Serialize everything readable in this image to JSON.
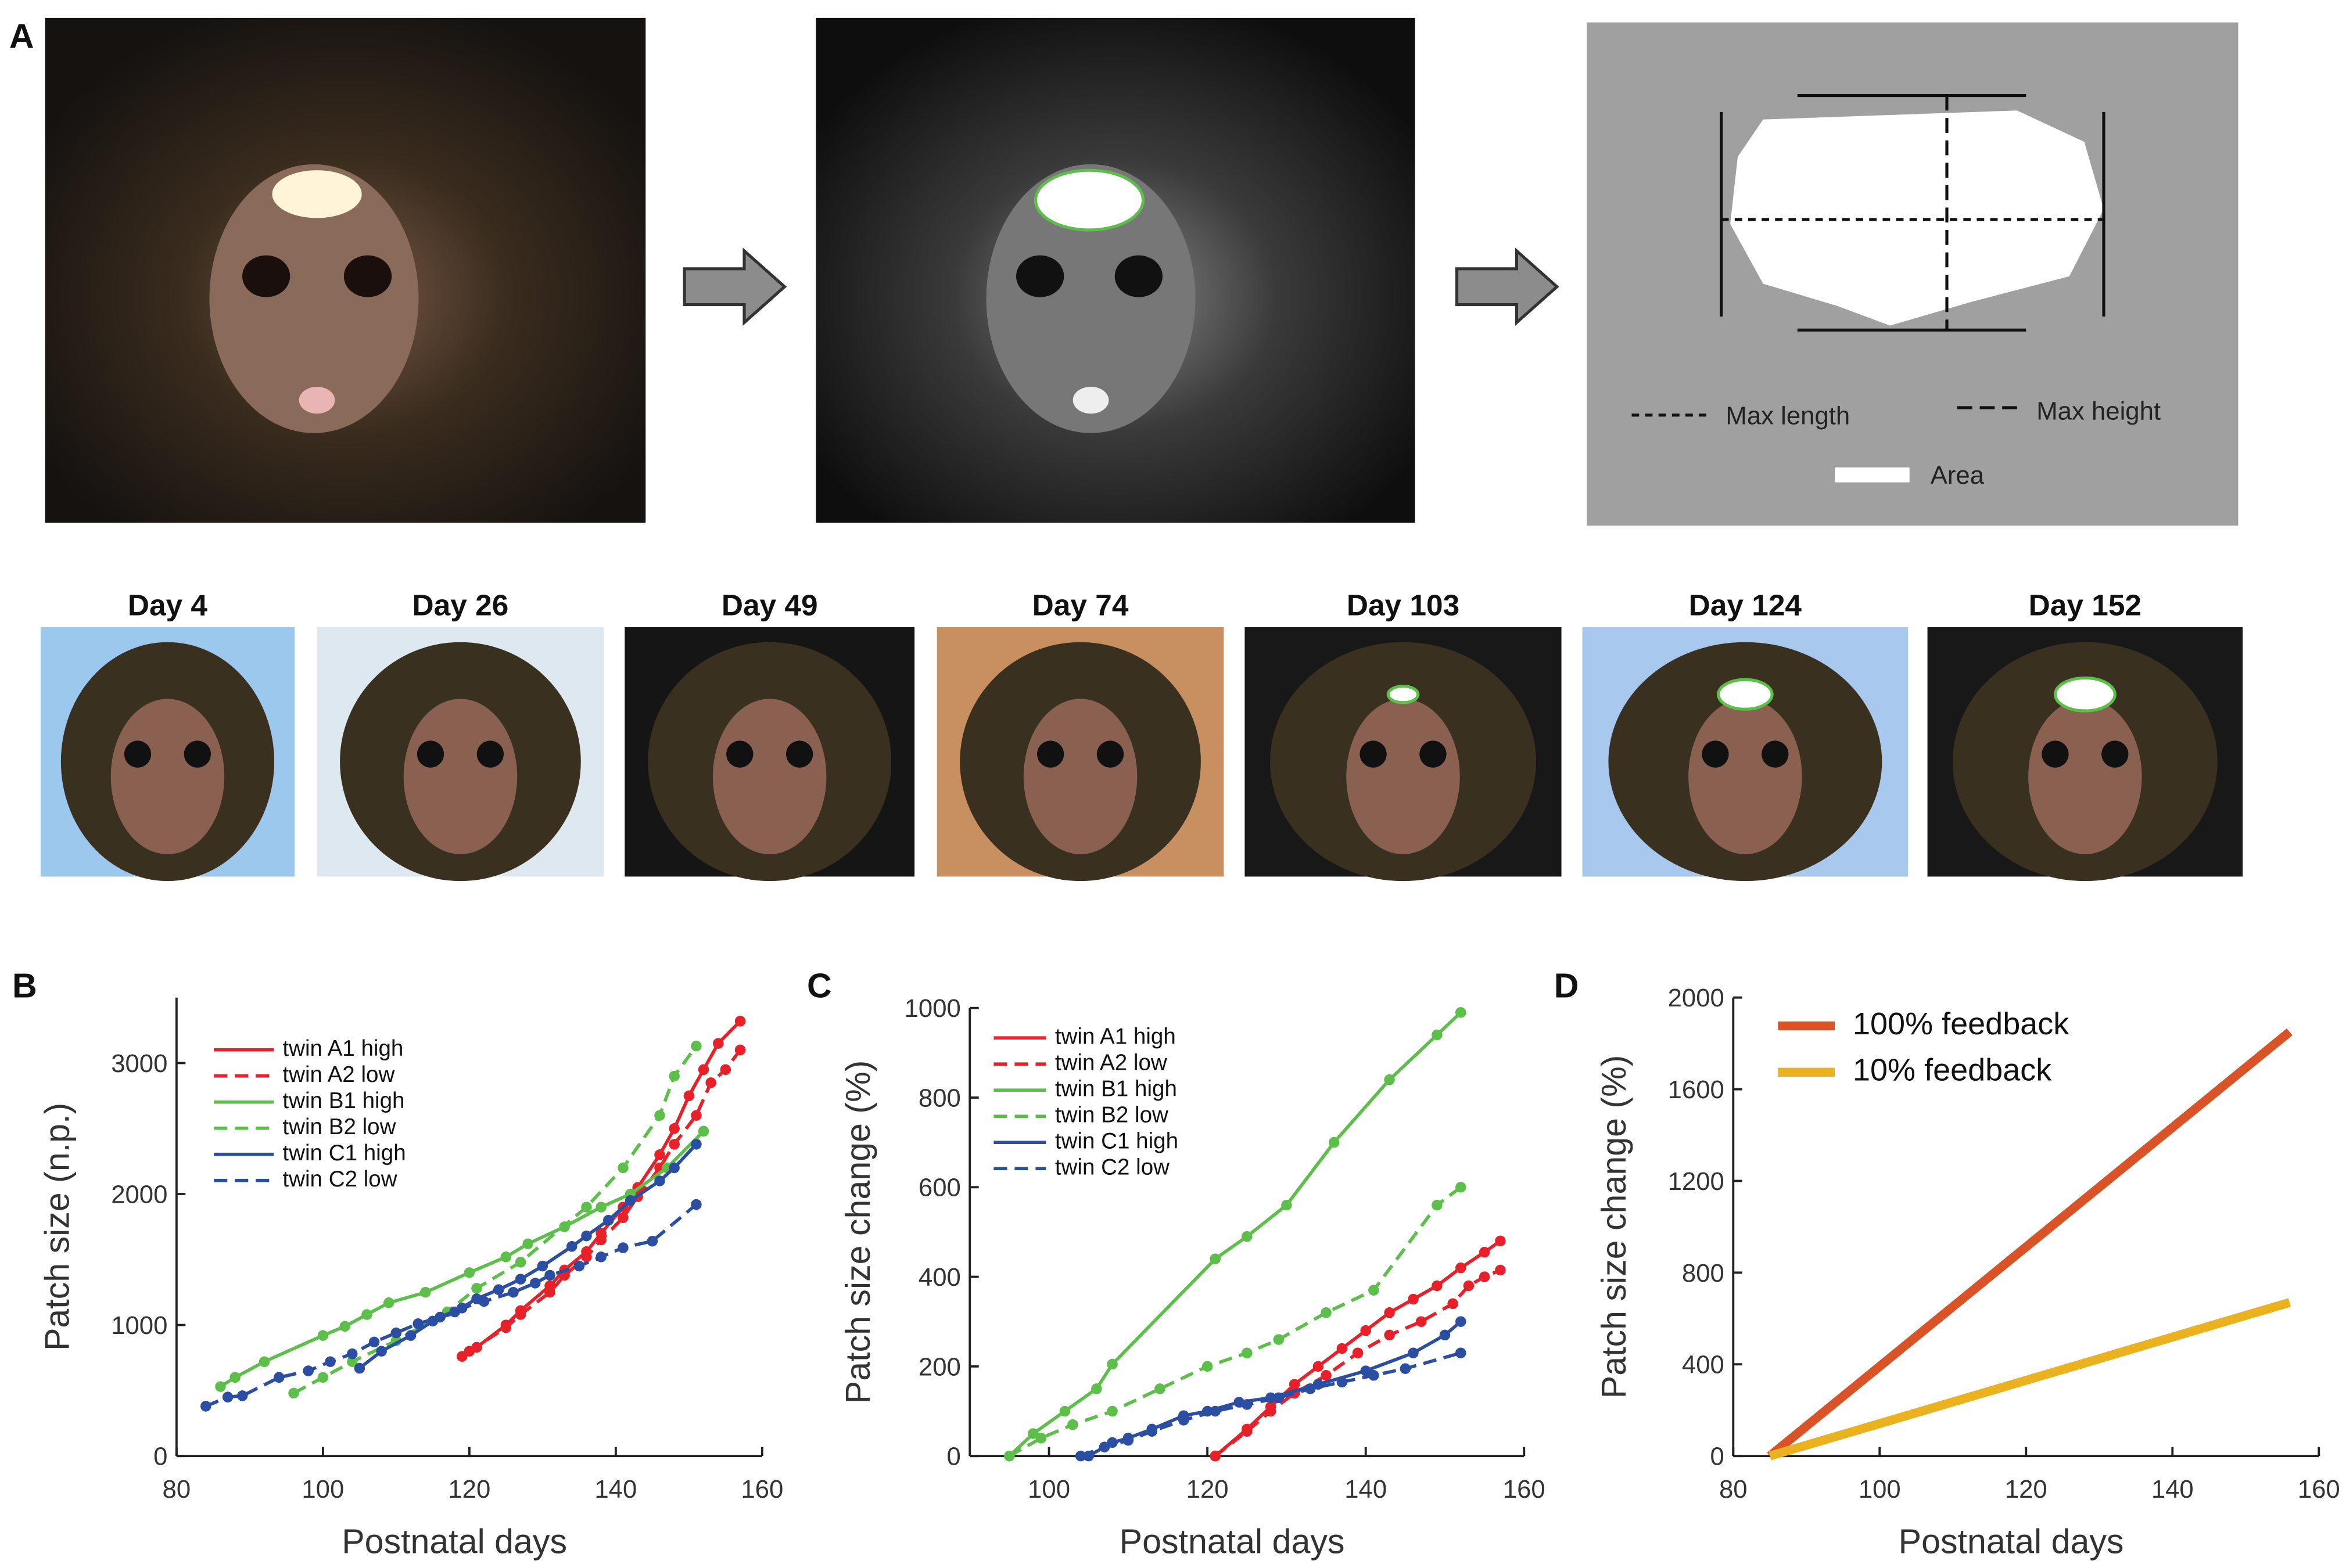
{
  "panel_a": {
    "label": "A",
    "max_length": "Max length",
    "max_height": "Max height",
    "area": "Area",
    "days": [
      "Day 4",
      "Day 26",
      "Day 49",
      "Day 74",
      "Day 103",
      "Day 124",
      "Day 152"
    ]
  },
  "chart_data": [
    {
      "type": "line",
      "panel": "B",
      "ylabel": "Patch size (n.p.)",
      "xlabel": "Postnatal days",
      "xlim": [
        80,
        160
      ],
      "xticks": [
        80,
        100,
        120,
        140,
        160
      ],
      "ylim": [
        0,
        3500
      ],
      "yticks": [
        0,
        1000,
        2000,
        3000
      ],
      "markers": true,
      "series": [
        {
          "name": "twin A1 high",
          "color": "#e8202a",
          "dashed": false,
          "x": [
            119,
            121,
            125,
            127,
            131,
            133,
            136,
            138,
            141,
            143,
            146,
            148,
            150,
            152,
            154,
            157
          ],
          "values": [
            760,
            830,
            1000,
            1110,
            1300,
            1420,
            1560,
            1700,
            1900,
            2050,
            2300,
            2500,
            2750,
            2950,
            3150,
            3320
          ]
        },
        {
          "name": "twin A2 low",
          "color": "#e8202a",
          "dashed": true,
          "x": [
            120,
            125,
            127,
            131,
            133,
            136,
            138,
            141,
            143,
            146,
            148,
            151,
            153,
            155,
            157
          ],
          "values": [
            800,
            980,
            1080,
            1250,
            1380,
            1520,
            1650,
            1820,
            1980,
            2200,
            2380,
            2600,
            2850,
            2950,
            3100
          ]
        },
        {
          "name": "twin B1 high",
          "color": "#5cbf4a",
          "dashed": false,
          "x": [
            86,
            88,
            92,
            100,
            103,
            106,
            109,
            114,
            120,
            125,
            128,
            133,
            138,
            142,
            147,
            152
          ],
          "values": [
            530,
            600,
            720,
            920,
            990,
            1080,
            1170,
            1250,
            1400,
            1520,
            1620,
            1750,
            1900,
            2000,
            2200,
            2480
          ]
        },
        {
          "name": "twin B2 low",
          "color": "#5cbf4a",
          "dashed": true,
          "x": [
            96,
            100,
            104,
            110,
            117,
            121,
            127,
            136,
            141,
            146,
            148,
            151
          ],
          "values": [
            480,
            600,
            720,
            880,
            1100,
            1280,
            1480,
            1900,
            2200,
            2600,
            2900,
            3130
          ]
        },
        {
          "name": "twin C1 high",
          "color": "#2b4ea2",
          "dashed": false,
          "x": [
            105,
            108,
            112,
            115,
            118,
            121,
            124,
            127,
            130,
            134,
            136,
            139,
            142,
            146,
            148,
            151
          ],
          "values": [
            670,
            800,
            920,
            1030,
            1100,
            1200,
            1270,
            1350,
            1450,
            1600,
            1680,
            1800,
            1950,
            2100,
            2200,
            2380
          ]
        },
        {
          "name": "twin C2 low",
          "color": "#2b4ea2",
          "dashed": true,
          "x": [
            84,
            87,
            89,
            94,
            98,
            101,
            104,
            107,
            110,
            113,
            116,
            119,
            122,
            126,
            129,
            131,
            135,
            138,
            141,
            145,
            151
          ],
          "values": [
            380,
            450,
            460,
            600,
            650,
            720,
            780,
            870,
            940,
            1010,
            1060,
            1130,
            1180,
            1250,
            1320,
            1380,
            1450,
            1520,
            1590,
            1640,
            1920
          ]
        }
      ]
    },
    {
      "type": "line",
      "panel": "C",
      "ylabel": "Patch size change (%)",
      "xlabel": "Postnatal days",
      "xlim": [
        90,
        160
      ],
      "xticks": [
        100,
        120,
        140,
        160
      ],
      "ylim": [
        0,
        1000
      ],
      "yticks": [
        0,
        200,
        400,
        600,
        800,
        1000
      ],
      "markers": true,
      "series": [
        {
          "name": "twin A1 high",
          "color": "#e8202a",
          "dashed": false,
          "x": [
            121,
            125,
            128,
            131,
            134,
            137,
            140,
            143,
            146,
            149,
            152,
            155,
            157
          ],
          "values": [
            0,
            60,
            110,
            160,
            200,
            240,
            280,
            320,
            350,
            380,
            420,
            455,
            480
          ]
        },
        {
          "name": "twin A2 low",
          "color": "#e8202a",
          "dashed": true,
          "x": [
            121,
            125,
            128,
            131,
            135,
            139,
            143,
            147,
            151,
            153,
            155,
            157
          ],
          "values": [
            0,
            55,
            100,
            140,
            180,
            230,
            270,
            300,
            340,
            380,
            400,
            415
          ]
        },
        {
          "name": "twin B1 high",
          "color": "#5cbf4a",
          "dashed": false,
          "x": [
            95,
            98,
            102,
            106,
            108,
            121,
            125,
            130,
            136,
            143,
            149,
            152
          ],
          "values": [
            0,
            50,
            100,
            150,
            205,
            440,
            490,
            560,
            700,
            840,
            940,
            990
          ]
        },
        {
          "name": "twin B2 low",
          "color": "#5cbf4a",
          "dashed": true,
          "x": [
            95,
            99,
            103,
            108,
            114,
            120,
            125,
            129,
            135,
            141,
            149,
            152
          ],
          "values": [
            0,
            40,
            70,
            100,
            150,
            200,
            230,
            260,
            320,
            370,
            560,
            600
          ]
        },
        {
          "name": "twin C1 high",
          "color": "#2b4ea2",
          "dashed": false,
          "x": [
            105,
            108,
            110,
            113,
            117,
            120,
            124,
            128,
            134,
            140,
            146,
            150,
            152
          ],
          "values": [
            0,
            30,
            40,
            60,
            90,
            100,
            120,
            130,
            160,
            190,
            230,
            270,
            300
          ]
        },
        {
          "name": "twin C2 low",
          "color": "#2b4ea2",
          "dashed": true,
          "x": [
            104,
            107,
            110,
            113,
            117,
            121,
            125,
            129,
            133,
            137,
            141,
            145,
            152
          ],
          "values": [
            0,
            20,
            35,
            55,
            80,
            100,
            115,
            130,
            150,
            165,
            180,
            195,
            230
          ]
        }
      ]
    },
    {
      "type": "line",
      "panel": "D",
      "ylabel": "Patch size change (%)",
      "xlabel": "Postnatal days",
      "xlim": [
        80,
        160
      ],
      "xticks": [
        80,
        100,
        120,
        140,
        160
      ],
      "ylim": [
        0,
        2000
      ],
      "yticks": [
        0,
        400,
        800,
        1200,
        1600,
        2000
      ],
      "markers": false,
      "series": [
        {
          "name": "100% feedback",
          "color": "#d95326",
          "dashed": false,
          "x": [
            85,
            156
          ],
          "values": [
            0,
            1850
          ]
        },
        {
          "name": "10% feedback",
          "color": "#ebb21f",
          "dashed": false,
          "x": [
            85,
            156
          ],
          "values": [
            0,
            670
          ]
        }
      ]
    }
  ]
}
